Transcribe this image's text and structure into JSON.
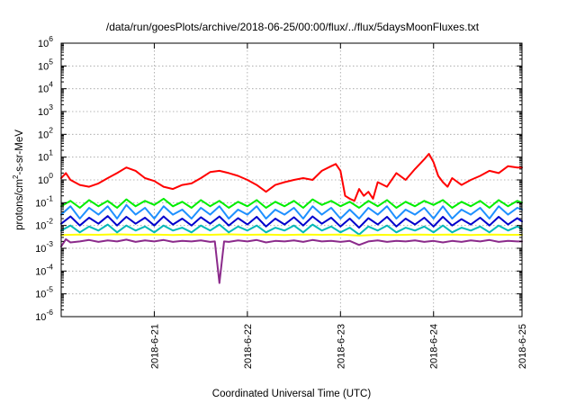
{
  "chart_data": {
    "type": "line",
    "title": "/data/run/goesPlots/archive/2018-06-25/00:00/flux/../flux/5daysMoonFluxes.txt",
    "xlabel": "Coordinated Universal Time (UTC)",
    "ylabel_prefix": "protons/cm",
    "ylabel_sup": "2",
    "ylabel_suffix": "-s-sr-MeV",
    "yscale": "log",
    "ylim_exp": [
      -6,
      6
    ],
    "y_tick_exponents": [
      -6,
      -5,
      -4,
      -3,
      -2,
      -1,
      0,
      1,
      2,
      3,
      4,
      5,
      6
    ],
    "y_tick_base": "10",
    "xlim": [
      0,
      4.95
    ],
    "x_ticks": [
      {
        "x": 1,
        "label": "2018-6-21"
      },
      {
        "x": 2,
        "label": "2018-6-22"
      },
      {
        "x": 3,
        "label": "2018-6-23"
      },
      {
        "x": 4,
        "label": "2018-6-24"
      },
      {
        "x": 4.95,
        "label": "2018-6-25"
      }
    ],
    "grid": true,
    "series": [
      {
        "color": "#ff0000",
        "x": [
          0.0,
          0.05,
          0.1,
          0.2,
          0.3,
          0.4,
          0.5,
          0.6,
          0.7,
          0.8,
          0.9,
          1.0,
          1.1,
          1.2,
          1.3,
          1.4,
          1.5,
          1.6,
          1.7,
          1.8,
          1.9,
          2.0,
          2.1,
          2.2,
          2.3,
          2.4,
          2.5,
          2.6,
          2.7,
          2.8,
          2.9,
          2.95,
          3.0,
          3.05,
          3.1,
          3.15,
          3.2,
          3.25,
          3.3,
          3.35,
          3.4,
          3.5,
          3.6,
          3.7,
          3.8,
          3.9,
          3.95,
          4.0,
          4.05,
          4.1,
          4.15,
          4.2,
          4.3,
          4.4,
          4.5,
          4.6,
          4.7,
          4.8,
          4.9,
          4.95
        ],
        "values": [
          1.2,
          2.0,
          1.0,
          0.6,
          0.5,
          0.7,
          1.2,
          2.0,
          3.5,
          2.5,
          1.2,
          0.9,
          0.5,
          0.4,
          0.6,
          0.7,
          1.2,
          2.2,
          2.5,
          2.0,
          1.5,
          1.0,
          0.6,
          0.3,
          0.6,
          0.8,
          1.0,
          1.2,
          1.0,
          2.5,
          4.0,
          5.0,
          2.5,
          0.2,
          0.15,
          0.12,
          0.4,
          0.2,
          0.3,
          0.15,
          0.8,
          0.5,
          2.0,
          1.0,
          3.0,
          8.0,
          14.0,
          6.0,
          1.5,
          0.8,
          0.5,
          1.2,
          0.6,
          1.0,
          1.5,
          2.5,
          2.0,
          4.0,
          3.5,
          3.5
        ]
      },
      {
        "color": "#00ee00",
        "x": [
          0.0,
          0.1,
          0.2,
          0.3,
          0.4,
          0.5,
          0.6,
          0.7,
          0.8,
          0.9,
          1.0,
          1.1,
          1.2,
          1.3,
          1.4,
          1.5,
          1.6,
          1.7,
          1.8,
          1.9,
          2.0,
          2.1,
          2.2,
          2.3,
          2.4,
          2.5,
          2.6,
          2.7,
          2.8,
          2.9,
          3.0,
          3.1,
          3.2,
          3.3,
          3.4,
          3.5,
          3.6,
          3.7,
          3.8,
          3.9,
          4.0,
          4.1,
          4.2,
          4.3,
          4.4,
          4.5,
          4.6,
          4.7,
          4.8,
          4.9,
          4.95
        ],
        "values": [
          0.07,
          0.12,
          0.06,
          0.13,
          0.07,
          0.12,
          0.06,
          0.14,
          0.07,
          0.12,
          0.08,
          0.15,
          0.07,
          0.11,
          0.06,
          0.13,
          0.07,
          0.12,
          0.06,
          0.11,
          0.07,
          0.13,
          0.06,
          0.11,
          0.07,
          0.12,
          0.06,
          0.14,
          0.08,
          0.12,
          0.07,
          0.11,
          0.06,
          0.12,
          0.07,
          0.13,
          0.06,
          0.11,
          0.07,
          0.12,
          0.08,
          0.13,
          0.06,
          0.11,
          0.07,
          0.12,
          0.06,
          0.13,
          0.07,
          0.12,
          0.1
        ]
      },
      {
        "color": "#1e90ff",
        "x": [
          0.0,
          0.1,
          0.2,
          0.3,
          0.4,
          0.5,
          0.6,
          0.7,
          0.8,
          0.9,
          1.0,
          1.1,
          1.2,
          1.3,
          1.4,
          1.5,
          1.6,
          1.7,
          1.8,
          1.9,
          2.0,
          2.1,
          2.2,
          2.3,
          2.4,
          2.5,
          2.6,
          2.7,
          2.8,
          2.9,
          3.0,
          3.1,
          3.2,
          3.3,
          3.4,
          3.5,
          3.6,
          3.7,
          3.8,
          3.9,
          4.0,
          4.1,
          4.2,
          4.3,
          4.4,
          4.5,
          4.6,
          4.7,
          4.8,
          4.9,
          4.95
        ],
        "values": [
          0.03,
          0.07,
          0.02,
          0.06,
          0.03,
          0.07,
          0.02,
          0.08,
          0.03,
          0.06,
          0.02,
          0.07,
          0.03,
          0.05,
          0.02,
          0.06,
          0.03,
          0.07,
          0.02,
          0.05,
          0.03,
          0.07,
          0.02,
          0.05,
          0.03,
          0.06,
          0.02,
          0.07,
          0.03,
          0.06,
          0.02,
          0.05,
          0.02,
          0.06,
          0.03,
          0.07,
          0.02,
          0.05,
          0.03,
          0.06,
          0.02,
          0.07,
          0.02,
          0.05,
          0.03,
          0.06,
          0.02,
          0.07,
          0.03,
          0.06,
          0.05
        ]
      },
      {
        "color": "#0000cd",
        "x": [
          0.0,
          0.1,
          0.2,
          0.3,
          0.4,
          0.5,
          0.6,
          0.7,
          0.8,
          0.9,
          1.0,
          1.1,
          1.2,
          1.3,
          1.4,
          1.5,
          1.6,
          1.7,
          1.8,
          1.9,
          2.0,
          2.1,
          2.2,
          2.3,
          2.4,
          2.5,
          2.6,
          2.7,
          2.8,
          2.9,
          3.0,
          3.1,
          3.2,
          3.3,
          3.4,
          3.5,
          3.6,
          3.7,
          3.8,
          3.9,
          4.0,
          4.1,
          4.2,
          4.3,
          4.4,
          4.5,
          4.6,
          4.7,
          4.8,
          4.9,
          4.95
        ],
        "values": [
          0.012,
          0.025,
          0.01,
          0.022,
          0.012,
          0.026,
          0.01,
          0.024,
          0.012,
          0.022,
          0.01,
          0.025,
          0.011,
          0.02,
          0.01,
          0.023,
          0.012,
          0.025,
          0.01,
          0.021,
          0.011,
          0.024,
          0.009,
          0.02,
          0.011,
          0.023,
          0.01,
          0.025,
          0.012,
          0.022,
          0.009,
          0.02,
          0.008,
          0.021,
          0.011,
          0.024,
          0.009,
          0.02,
          0.011,
          0.022,
          0.009,
          0.024,
          0.01,
          0.019,
          0.011,
          0.022,
          0.01,
          0.024,
          0.011,
          0.021,
          0.015
        ]
      },
      {
        "color": "#00b8b8",
        "x": [
          0.0,
          0.1,
          0.2,
          0.3,
          0.4,
          0.5,
          0.6,
          0.7,
          0.8,
          0.9,
          1.0,
          1.1,
          1.2,
          1.3,
          1.4,
          1.5,
          1.6,
          1.7,
          1.8,
          1.9,
          2.0,
          2.1,
          2.2,
          2.3,
          2.4,
          2.5,
          2.6,
          2.7,
          2.8,
          2.9,
          3.0,
          3.1,
          3.2,
          3.3,
          3.4,
          3.5,
          3.6,
          3.7,
          3.8,
          3.9,
          4.0,
          4.1,
          4.2,
          4.3,
          4.4,
          4.5,
          4.6,
          4.7,
          4.8,
          4.9,
          4.95
        ],
        "values": [
          0.006,
          0.01,
          0.005,
          0.009,
          0.006,
          0.011,
          0.005,
          0.01,
          0.006,
          0.009,
          0.005,
          0.01,
          0.006,
          0.008,
          0.005,
          0.01,
          0.006,
          0.011,
          0.005,
          0.009,
          0.006,
          0.01,
          0.005,
          0.008,
          0.006,
          0.01,
          0.005,
          0.011,
          0.006,
          0.009,
          0.005,
          0.008,
          0.004,
          0.009,
          0.006,
          0.01,
          0.005,
          0.008,
          0.006,
          0.009,
          0.005,
          0.01,
          0.005,
          0.008,
          0.006,
          0.009,
          0.005,
          0.01,
          0.006,
          0.009,
          0.007
        ]
      },
      {
        "color": "#ffff00",
        "x": [
          0.0,
          0.2,
          0.4,
          0.6,
          0.8,
          1.0,
          1.2,
          1.4,
          1.6,
          1.8,
          2.0,
          2.2,
          2.4,
          2.6,
          2.8,
          3.0,
          3.2,
          3.4,
          3.6,
          3.8,
          4.0,
          4.2,
          4.4,
          4.6,
          4.8,
          4.95
        ],
        "values": [
          0.0038,
          0.004,
          0.0039,
          0.0041,
          0.0039,
          0.004,
          0.0038,
          0.004,
          0.0039,
          0.0041,
          0.0039,
          0.004,
          0.0038,
          0.004,
          0.0039,
          0.004,
          0.0036,
          0.0039,
          0.0038,
          0.004,
          0.0039,
          0.004,
          0.0038,
          0.004,
          0.0039,
          0.0039
        ]
      },
      {
        "color": "#8b2a8b",
        "x": [
          0.0,
          0.05,
          0.1,
          0.2,
          0.3,
          0.4,
          0.5,
          0.6,
          0.7,
          0.8,
          0.9,
          1.0,
          1.1,
          1.2,
          1.3,
          1.4,
          1.5,
          1.6,
          1.65,
          1.7,
          1.75,
          1.8,
          1.9,
          2.0,
          2.1,
          2.2,
          2.3,
          2.4,
          2.5,
          2.6,
          2.7,
          2.8,
          2.9,
          3.0,
          3.1,
          3.2,
          3.3,
          3.4,
          3.5,
          3.6,
          3.7,
          3.8,
          3.9,
          4.0,
          4.1,
          4.2,
          4.3,
          4.4,
          4.5,
          4.6,
          4.7,
          4.8,
          4.9,
          4.95
        ],
        "values": [
          0.0012,
          0.0025,
          0.0018,
          0.002,
          0.0023,
          0.0019,
          0.0022,
          0.002,
          0.0024,
          0.0019,
          0.0022,
          0.002,
          0.0023,
          0.0019,
          0.0021,
          0.002,
          0.0022,
          0.0019,
          0.002,
          3e-05,
          0.002,
          0.0019,
          0.0022,
          0.002,
          0.0023,
          0.0018,
          0.0021,
          0.002,
          0.0022,
          0.0019,
          0.0023,
          0.002,
          0.0021,
          0.0019,
          0.0021,
          0.0014,
          0.002,
          0.0022,
          0.0019,
          0.0021,
          0.002,
          0.0022,
          0.0019,
          0.0021,
          0.0018,
          0.0021,
          0.0019,
          0.0022,
          0.002,
          0.0023,
          0.0019,
          0.0021,
          0.002,
          0.002
        ]
      }
    ]
  }
}
